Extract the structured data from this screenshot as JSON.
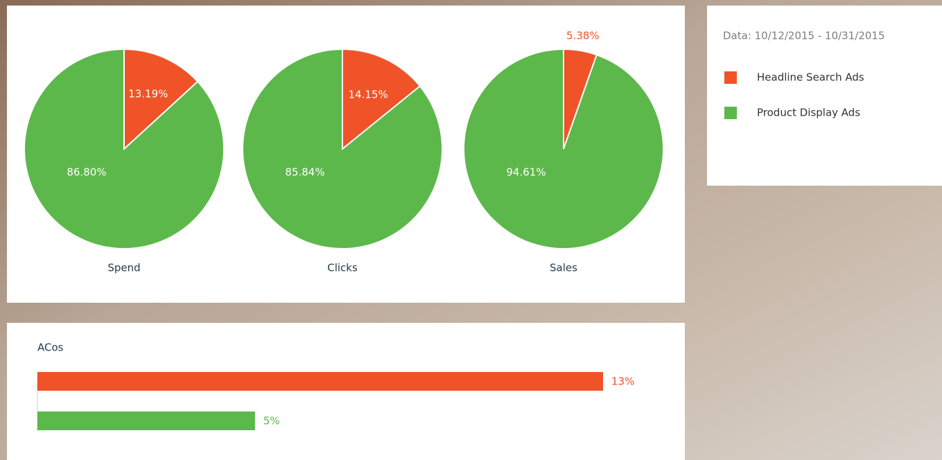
{
  "legend": {
    "title": "Data: 10/12/2015 - 10/31/2015",
    "items": [
      {
        "name": "Headline Search Ads",
        "color": "#f05327"
      },
      {
        "name": "Product Display Ads",
        "color": "#5cb84a"
      }
    ]
  },
  "chart_data": [
    {
      "type": "pie",
      "title": "Spend",
      "values": [
        13.19,
        86.8
      ],
      "value_labels": [
        "13.19%",
        "86.80%"
      ],
      "colors": [
        "#f05327",
        "#5cb84a"
      ]
    },
    {
      "type": "pie",
      "title": "Clicks",
      "values": [
        14.15,
        85.84
      ],
      "value_labels": [
        "14.15%",
        "85.84%"
      ],
      "colors": [
        "#f05327",
        "#5cb84a"
      ]
    },
    {
      "type": "pie",
      "title": "Sales",
      "values": [
        5.38,
        94.61
      ],
      "value_labels": [
        "5.38%",
        "94.61%"
      ],
      "colors": [
        "#f05327",
        "#5cb84a"
      ]
    },
    {
      "type": "bar",
      "title": "ACos",
      "values": [
        13,
        5
      ],
      "value_labels": [
        "13%",
        "5%"
      ],
      "colors": [
        "#f05327",
        "#5cb84a"
      ]
    }
  ]
}
